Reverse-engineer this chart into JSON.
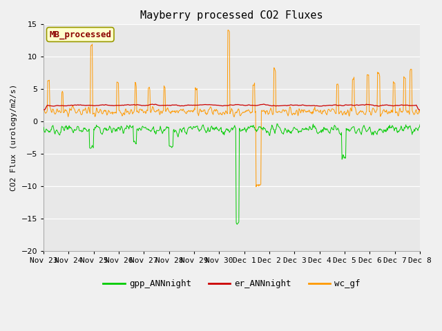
{
  "title": "Mayberry processed CO2 Fluxes",
  "ylabel": "CO2 Flux (urology/m2/s)",
  "ylim": [
    -20,
    15
  ],
  "yticks": [
    -20,
    -15,
    -10,
    -5,
    0,
    5,
    10,
    15
  ],
  "fig_bg_color": "#f0f0f0",
  "plot_bg_color": "#f0f0f0",
  "inner_bg_color": "#e8e8e8",
  "legend_label": "MB_processed",
  "legend_text_color": "#8b0000",
  "legend_box_facecolor": "#ffffcc",
  "legend_box_edgecolor": "#999900",
  "line_colors": {
    "gpp": "#00cc00",
    "er": "#cc0000",
    "wc": "#ff9900"
  },
  "legend_items": [
    "gpp_ANNnight",
    "er_ANNnight",
    "wc_gf"
  ],
  "n_points": 720,
  "seed": 42,
  "tick_labels": [
    "Nov 23",
    "Nov 24",
    "Nov 25",
    "Nov 26",
    "Nov 27",
    "Nov 28",
    "Nov 29",
    "Nov 30",
    "Dec 1",
    "Dec 2",
    "Dec 3",
    "Dec 4",
    "Dec 5",
    "Dec 6",
    "Dec 7",
    "Dec 8"
  ]
}
